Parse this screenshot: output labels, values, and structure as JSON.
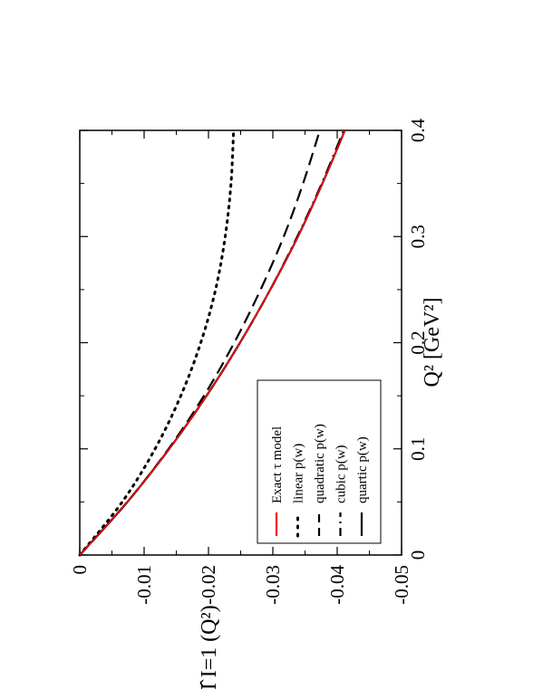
{
  "chart_data": {
    "type": "line",
    "orientation": "rotated-90-ccw",
    "xlabel": "Q² [GeV²]",
    "ylabel": "Π̂ I=1 (Q²)",
    "xlim": [
      0,
      0.4
    ],
    "ylim": [
      -0.05,
      0
    ],
    "x_ticks": [
      "0",
      "0.1",
      "0.2",
      "0.3",
      "0.4"
    ],
    "y_ticks": [
      "0",
      "-0.01",
      "-0.02",
      "-0.03",
      "-0.04",
      "-0.05"
    ],
    "grid": false,
    "legend_position": "bottom-right",
    "x": [
      0,
      0.05,
      0.1,
      0.15,
      0.2,
      0.25,
      0.3,
      0.35,
      0.4
    ],
    "series": [
      {
        "name": "Exact τ model",
        "color": "#ff0000",
        "style": "solid",
        "values": [
          0,
          -0.0074,
          -0.0139,
          -0.0197,
          -0.0249,
          -0.0296,
          -0.0339,
          -0.0377,
          -0.0412
        ]
      },
      {
        "name": "linear p(w)",
        "color": "#000000",
        "style": "dotted",
        "values": [
          0,
          -0.0066,
          -0.0117,
          -0.0157,
          -0.0188,
          -0.0211,
          -0.0226,
          -0.0235,
          -0.0239
        ]
      },
      {
        "name": "quadratic p(w)",
        "color": "#000000",
        "style": "dashed",
        "values": [
          0,
          -0.0074,
          -0.0138,
          -0.0193,
          -0.024,
          -0.0281,
          -0.0317,
          -0.0347,
          -0.0373
        ]
      },
      {
        "name": "cubic p(w)",
        "color": "#000000",
        "style": "dashdot",
        "values": [
          0,
          -0.0074,
          -0.0139,
          -0.0197,
          -0.0249,
          -0.0296,
          -0.0338,
          -0.0376,
          -0.041
        ]
      },
      {
        "name": "quartic p(w)",
        "color": "#000000",
        "style": "solid",
        "values": [
          0,
          -0.0074,
          -0.0139,
          -0.0197,
          -0.0249,
          -0.0296,
          -0.0339,
          -0.0377,
          -0.0412
        ]
      }
    ]
  }
}
